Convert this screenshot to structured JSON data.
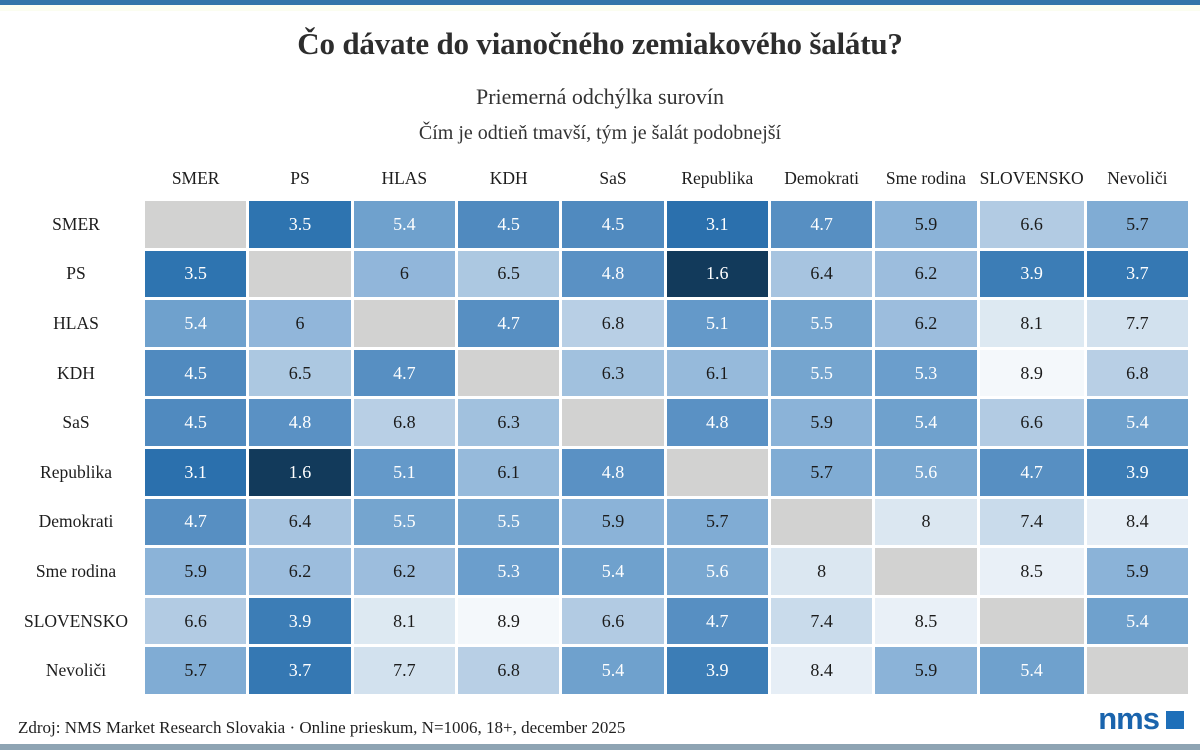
{
  "chart_data": {
    "type": "heatmap",
    "title": "Čo dávate do vianočného zemiakového šalátu?",
    "subtitle": "Priemerná odchýlka surovín",
    "note": "Čím je odtieň tmavší, tým je šalát podobnejší",
    "categories": [
      "SMER",
      "PS",
      "HLAS",
      "KDH",
      "SaS",
      "Republika",
      "Demokrati",
      "Sme rodina",
      "SLOVENSKO",
      "Nevoliči"
    ],
    "matrix": [
      [
        null,
        3.5,
        5.4,
        4.5,
        4.5,
        3.1,
        4.7,
        5.9,
        6.6,
        5.7
      ],
      [
        3.5,
        null,
        6,
        6.5,
        4.8,
        1.6,
        6.4,
        6.2,
        3.9,
        3.7
      ],
      [
        5.4,
        6,
        null,
        4.7,
        6.8,
        5.1,
        5.5,
        6.2,
        8.1,
        7.7
      ],
      [
        4.5,
        6.5,
        4.7,
        null,
        6.3,
        6.1,
        5.5,
        5.3,
        8.9,
        6.8
      ],
      [
        4.5,
        4.8,
        6.8,
        6.3,
        null,
        4.8,
        5.9,
        5.4,
        6.6,
        5.4
      ],
      [
        3.1,
        1.6,
        5.1,
        6.1,
        4.8,
        null,
        5.7,
        5.6,
        4.7,
        3.9
      ],
      [
        4.7,
        6.4,
        5.5,
        5.5,
        5.9,
        5.7,
        null,
        8,
        7.4,
        8.4
      ],
      [
        5.9,
        6.2,
        6.2,
        5.3,
        5.4,
        5.6,
        8,
        null,
        8.5,
        5.9
      ],
      [
        6.6,
        3.9,
        8.1,
        8.9,
        6.6,
        4.7,
        7.4,
        8.5,
        null,
        5.4
      ],
      [
        5.7,
        3.7,
        7.7,
        6.8,
        5.4,
        3.9,
        8.4,
        5.9,
        5.4,
        null
      ]
    ],
    "value_range": [
      1.6,
      8.9
    ],
    "legend": "none",
    "colors": {
      "scale_stops": [
        {
          "value": 1.6,
          "color": "#123a5b"
        },
        {
          "value": 3.1,
          "color": "#2b70ad"
        },
        {
          "value": 3.5,
          "color": "#2e74b0"
        },
        {
          "value": 4.8,
          "color": "#5a91c4"
        },
        {
          "value": 5.4,
          "color": "#6fa1cd"
        },
        {
          "value": 5.9,
          "color": "#8bb3d8"
        },
        {
          "value": 6.6,
          "color": "#b2cbe3"
        },
        {
          "value": 7.7,
          "color": "#d2e1ee"
        },
        {
          "value": 8.9,
          "color": "#f4f8fb"
        }
      ],
      "diagonal": "#d2d2d1",
      "text_light": "#ffffff",
      "text_dark": "#1c1c1c",
      "light_text_max_value": 5.6,
      "top_bar": "#3274a8",
      "bottom_bar": "#8ea4b3"
    }
  },
  "footer": {
    "source": "Zdroj: NMS Market Research Slovakia · Online prieskum, N=1006, 18+, december 2025",
    "logo_text": "nms",
    "logo_color": "#1a64ad",
    "logo_square_color": "#1e6fb9"
  }
}
